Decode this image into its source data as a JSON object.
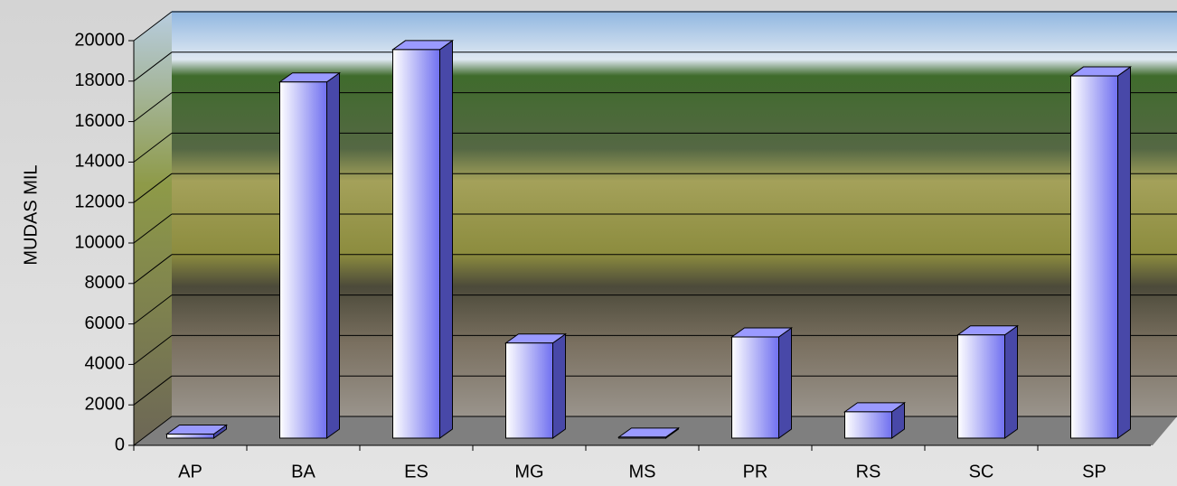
{
  "chart_data": {
    "type": "bar",
    "y_label": "MUDAS MIL",
    "categories": [
      "AP",
      "BA",
      "ES",
      "MG",
      "MS",
      "PR",
      "RS",
      "SC",
      "SP"
    ],
    "values": [
      200,
      17600,
      19200,
      4700,
      50,
      5000,
      1300,
      5100,
      17900
    ],
    "color": "#8080ff",
    "ylim": [
      0,
      20000
    ],
    "yticks": [
      0,
      2000,
      4000,
      6000,
      8000,
      10000,
      12000,
      14000,
      16000,
      18000,
      20000
    ],
    "grid": true
  }
}
